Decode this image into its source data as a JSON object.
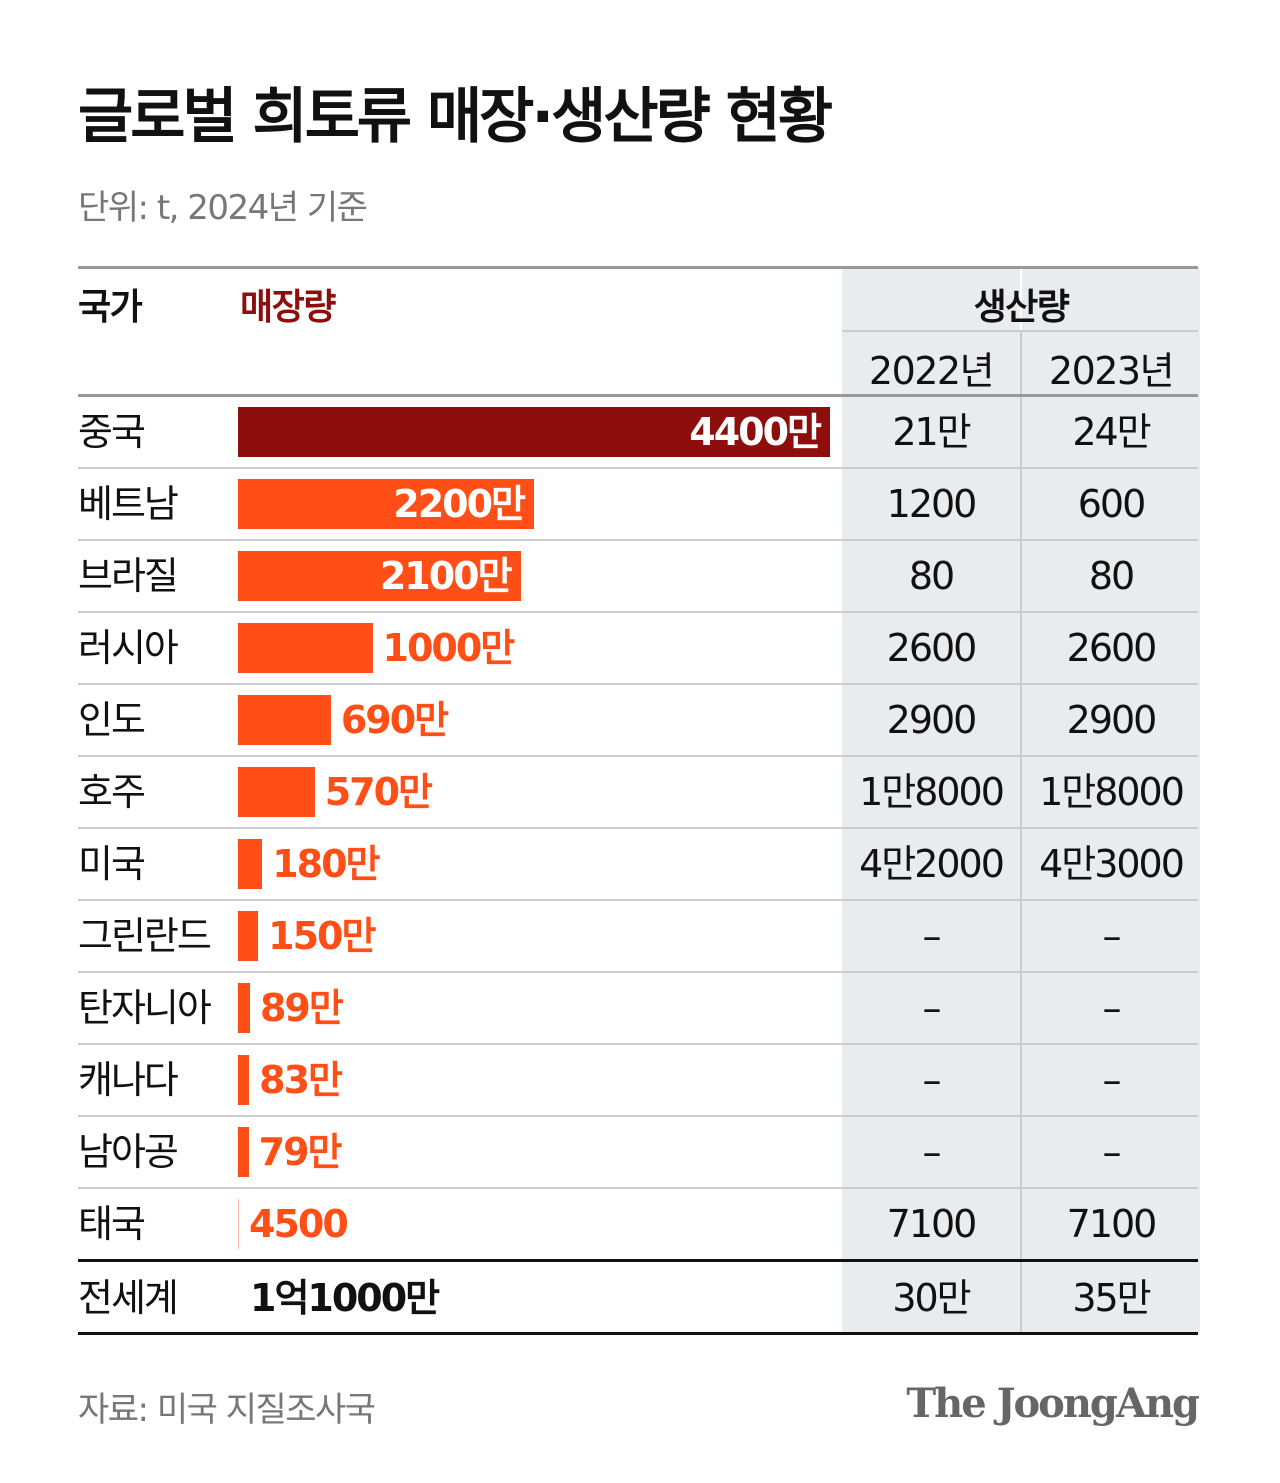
{
  "title": "글로벌 희토류 매장·생산량 현황",
  "subtitle": "단위: t, 2024년 기준",
  "colors": {
    "china_bar": "#8e0e0e",
    "bar": "#ff4f17",
    "production_bg": "#e9ecef"
  },
  "header": {
    "country": "국가",
    "reserves": "매장량",
    "production": "생산량",
    "year1": "2022년",
    "year2": "2023년"
  },
  "chart_data": {
    "type": "bar",
    "orientation": "horizontal",
    "title": "글로벌 희토류 매장·생산량 현황",
    "unit": "t",
    "rows": [
      {
        "country": "중국",
        "reserves": 44000000,
        "reserves_label": "4400만",
        "p2022": "21만",
        "p2023": "24만"
      },
      {
        "country": "베트남",
        "reserves": 22000000,
        "reserves_label": "2200만",
        "p2022": "1200",
        "p2023": "600"
      },
      {
        "country": "브라질",
        "reserves": 21000000,
        "reserves_label": "2100만",
        "p2022": "80",
        "p2023": "80"
      },
      {
        "country": "러시아",
        "reserves": 10000000,
        "reserves_label": "1000만",
        "p2022": "2600",
        "p2023": "2600"
      },
      {
        "country": "인도",
        "reserves": 6900000,
        "reserves_label": "690만",
        "p2022": "2900",
        "p2023": "2900"
      },
      {
        "country": "호주",
        "reserves": 5700000,
        "reserves_label": "570만",
        "p2022": "1만8000",
        "p2023": "1만8000"
      },
      {
        "country": "미국",
        "reserves": 1800000,
        "reserves_label": "180만",
        "p2022": "4만2000",
        "p2023": "4만3000"
      },
      {
        "country": "그린란드",
        "reserves": 1500000,
        "reserves_label": "150만",
        "p2022": "–",
        "p2023": "–"
      },
      {
        "country": "탄자니아",
        "reserves": 890000,
        "reserves_label": "89만",
        "p2022": "–",
        "p2023": "–"
      },
      {
        "country": "캐나다",
        "reserves": 830000,
        "reserves_label": "83만",
        "p2022": "–",
        "p2023": "–"
      },
      {
        "country": "남아공",
        "reserves": 790000,
        "reserves_label": "79만",
        "p2022": "–",
        "p2023": "–"
      },
      {
        "country": "태국",
        "reserves": 4500,
        "reserves_label": "4500",
        "p2022": "7100",
        "p2023": "7100"
      }
    ],
    "total": {
      "country": "전세계",
      "reserves_label": "1억1000만",
      "p2022": "30만",
      "p2023": "35만"
    }
  },
  "footer": {
    "source": "자료: 미국 지질조사국",
    "logo": "The JoongAng"
  }
}
